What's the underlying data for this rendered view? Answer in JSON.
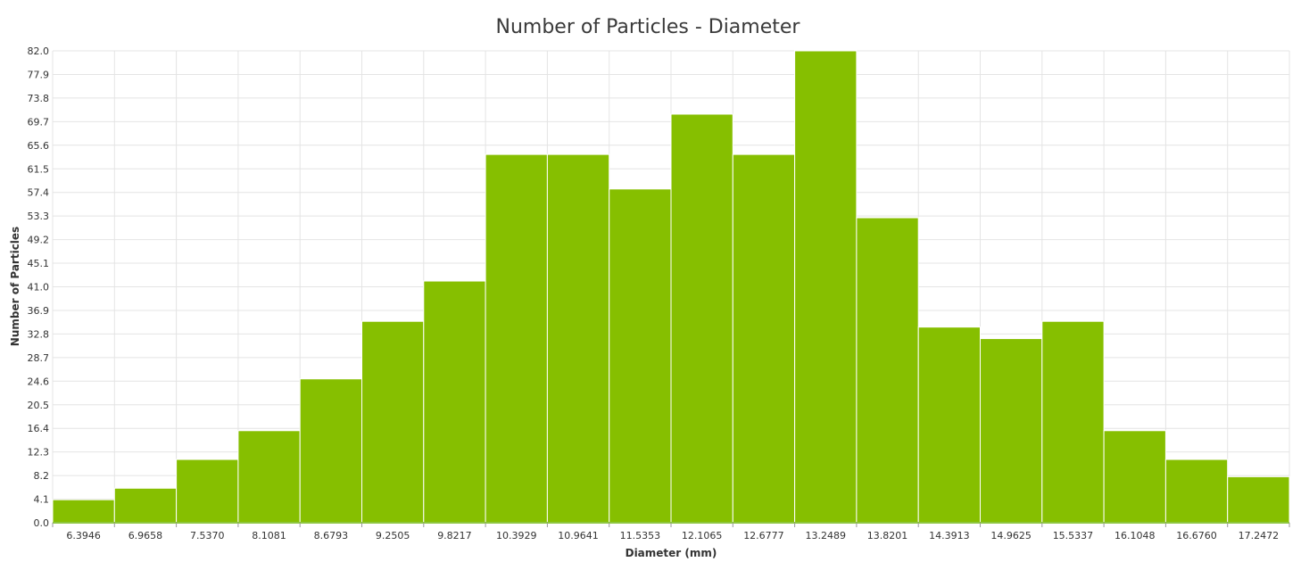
{
  "chart_data": {
    "type": "bar",
    "title": "Number of Particles - Diameter",
    "xlabel": "Diameter (mm)",
    "ylabel": "Number of Particles",
    "categories": [
      "6.3946",
      "6.9658",
      "7.5370",
      "8.1081",
      "8.6793",
      "9.2505",
      "9.8217",
      "10.3929",
      "10.9641",
      "11.5353",
      "12.1065",
      "12.6777",
      "13.2489",
      "13.8201",
      "14.3913",
      "14.9625",
      "15.5337",
      "16.1048",
      "16.6760",
      "17.2472"
    ],
    "values": [
      4,
      6,
      11,
      16,
      25,
      35,
      42,
      64,
      64,
      58,
      71,
      64,
      82,
      53,
      34,
      32,
      35,
      16,
      11,
      8
    ],
    "ylim": [
      0,
      82
    ],
    "yticks": [
      "0.0",
      "4.1",
      "8.2",
      "12.3",
      "16.4",
      "20.5",
      "24.6",
      "28.7",
      "32.8",
      "36.9",
      "41.0",
      "45.1",
      "49.2",
      "53.3",
      "57.4",
      "61.5",
      "65.6",
      "69.7",
      "73.8",
      "77.9",
      "82.0"
    ],
    "grid": true,
    "colors": {
      "bar": "#86bf00",
      "bar_edge": "#ffffff",
      "grid": "#e4e4e4",
      "axis": "#8ec63f"
    }
  }
}
